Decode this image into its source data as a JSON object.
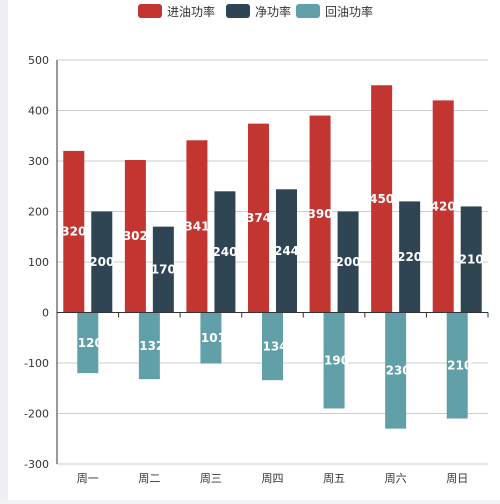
{
  "colors": {
    "series_0": "#c23531",
    "series_1": "#2f4554",
    "series_2": "#61a0a8",
    "axis": "#333333",
    "grid": "#cccccc"
  },
  "chart_data": {
    "type": "bar",
    "title": "",
    "xlabel": "",
    "ylabel": "",
    "categories": [
      "周一",
      "周二",
      "周三",
      "周四",
      "周五",
      "周六",
      "周日"
    ],
    "series": [
      {
        "name": "进油功率",
        "values": [
          320,
          302,
          341,
          374,
          390,
          450,
          420
        ]
      },
      {
        "name": "净功率",
        "values": [
          200,
          170,
          240,
          244,
          200,
          220,
          210
        ]
      },
      {
        "name": "回油功率",
        "values": [
          -120,
          -132,
          -101,
          -134,
          -190,
          -230,
          -210
        ]
      }
    ],
    "ylim": [
      -300,
      500
    ],
    "yticks": [
      -300,
      -200,
      -100,
      0,
      100,
      200,
      300,
      400,
      500
    ],
    "grid": true,
    "legend_position": "top-center",
    "data_labels": true
  }
}
